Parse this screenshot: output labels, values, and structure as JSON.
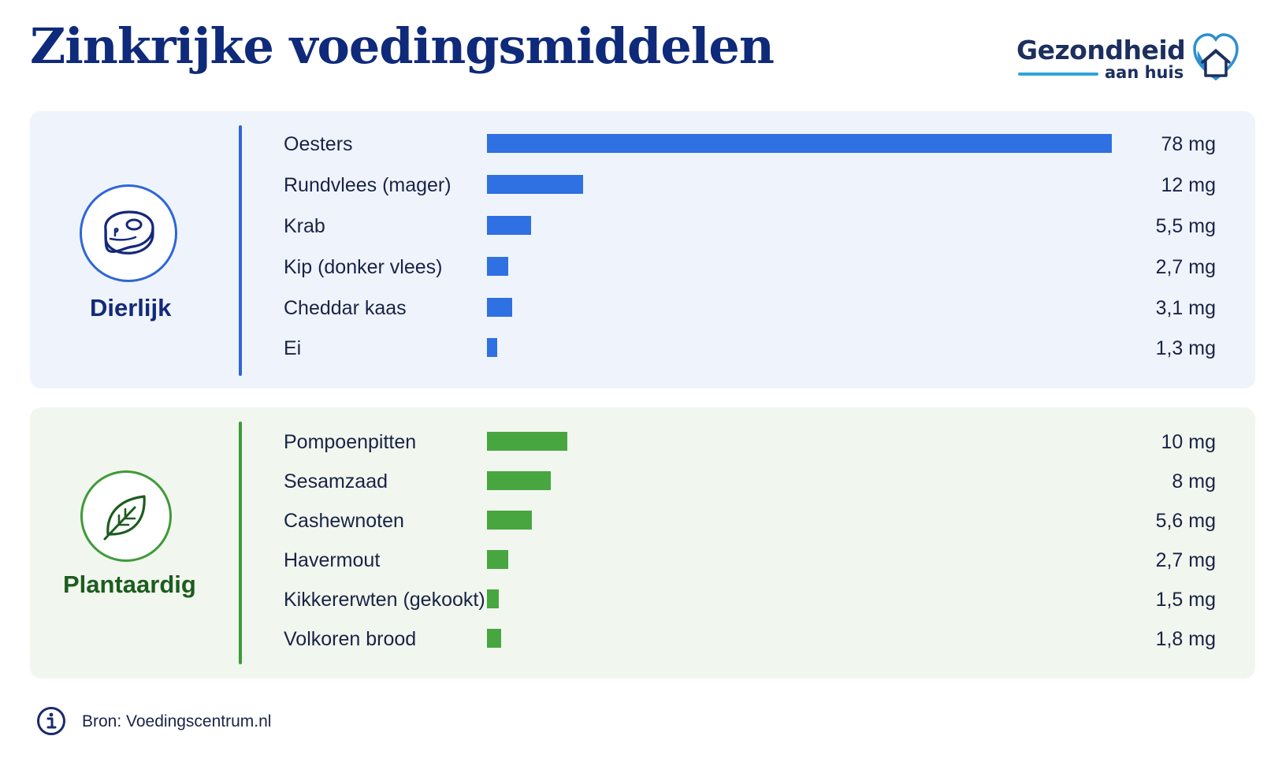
{
  "header": {
    "title": "Zinkrijke voedingsmiddelen",
    "logo_line1": "Gezondheid",
    "logo_line2": "aan huis"
  },
  "colors": {
    "title": "#0f2a7a",
    "animal_accent": "#2f66d6",
    "animal_bar": "#2f70e2",
    "plant_accent": "#3f9a3a",
    "plant_bar": "#47a640"
  },
  "chart_data": {
    "type": "bar",
    "orientation": "horizontal",
    "max_value": 78,
    "groups": [
      {
        "name": "Dierlijk",
        "icon": "steak-icon",
        "categories": [
          "Oesters",
          "Rundvlees (mager)",
          "Krab",
          "Kip (donker vlees)",
          "Cheddar kaas",
          "Ei"
        ],
        "values": [
          78,
          12,
          5.5,
          2.7,
          3.1,
          1.3
        ],
        "labels": [
          "78 mg",
          "12 mg",
          "5,5 mg",
          "2,7 mg",
          "3,1 mg",
          "1,3 mg"
        ]
      },
      {
        "name": "Plantaardig",
        "icon": "leaf-icon",
        "categories": [
          "Pompoenpitten",
          "Sesamzaad",
          "Cashewnoten",
          "Havermout",
          "Kikkererwten (gekookt)",
          "Volkoren brood"
        ],
        "values": [
          10,
          8,
          5.6,
          2.7,
          1.5,
          1.8
        ],
        "labels": [
          "10 mg",
          "8 mg",
          "5,6 mg",
          "2,7 mg",
          "1,5 mg",
          "1,8 mg"
        ]
      }
    ]
  },
  "footer": {
    "source": "Bron: Voedingscentrum.nl",
    "icon": "info-icon"
  }
}
